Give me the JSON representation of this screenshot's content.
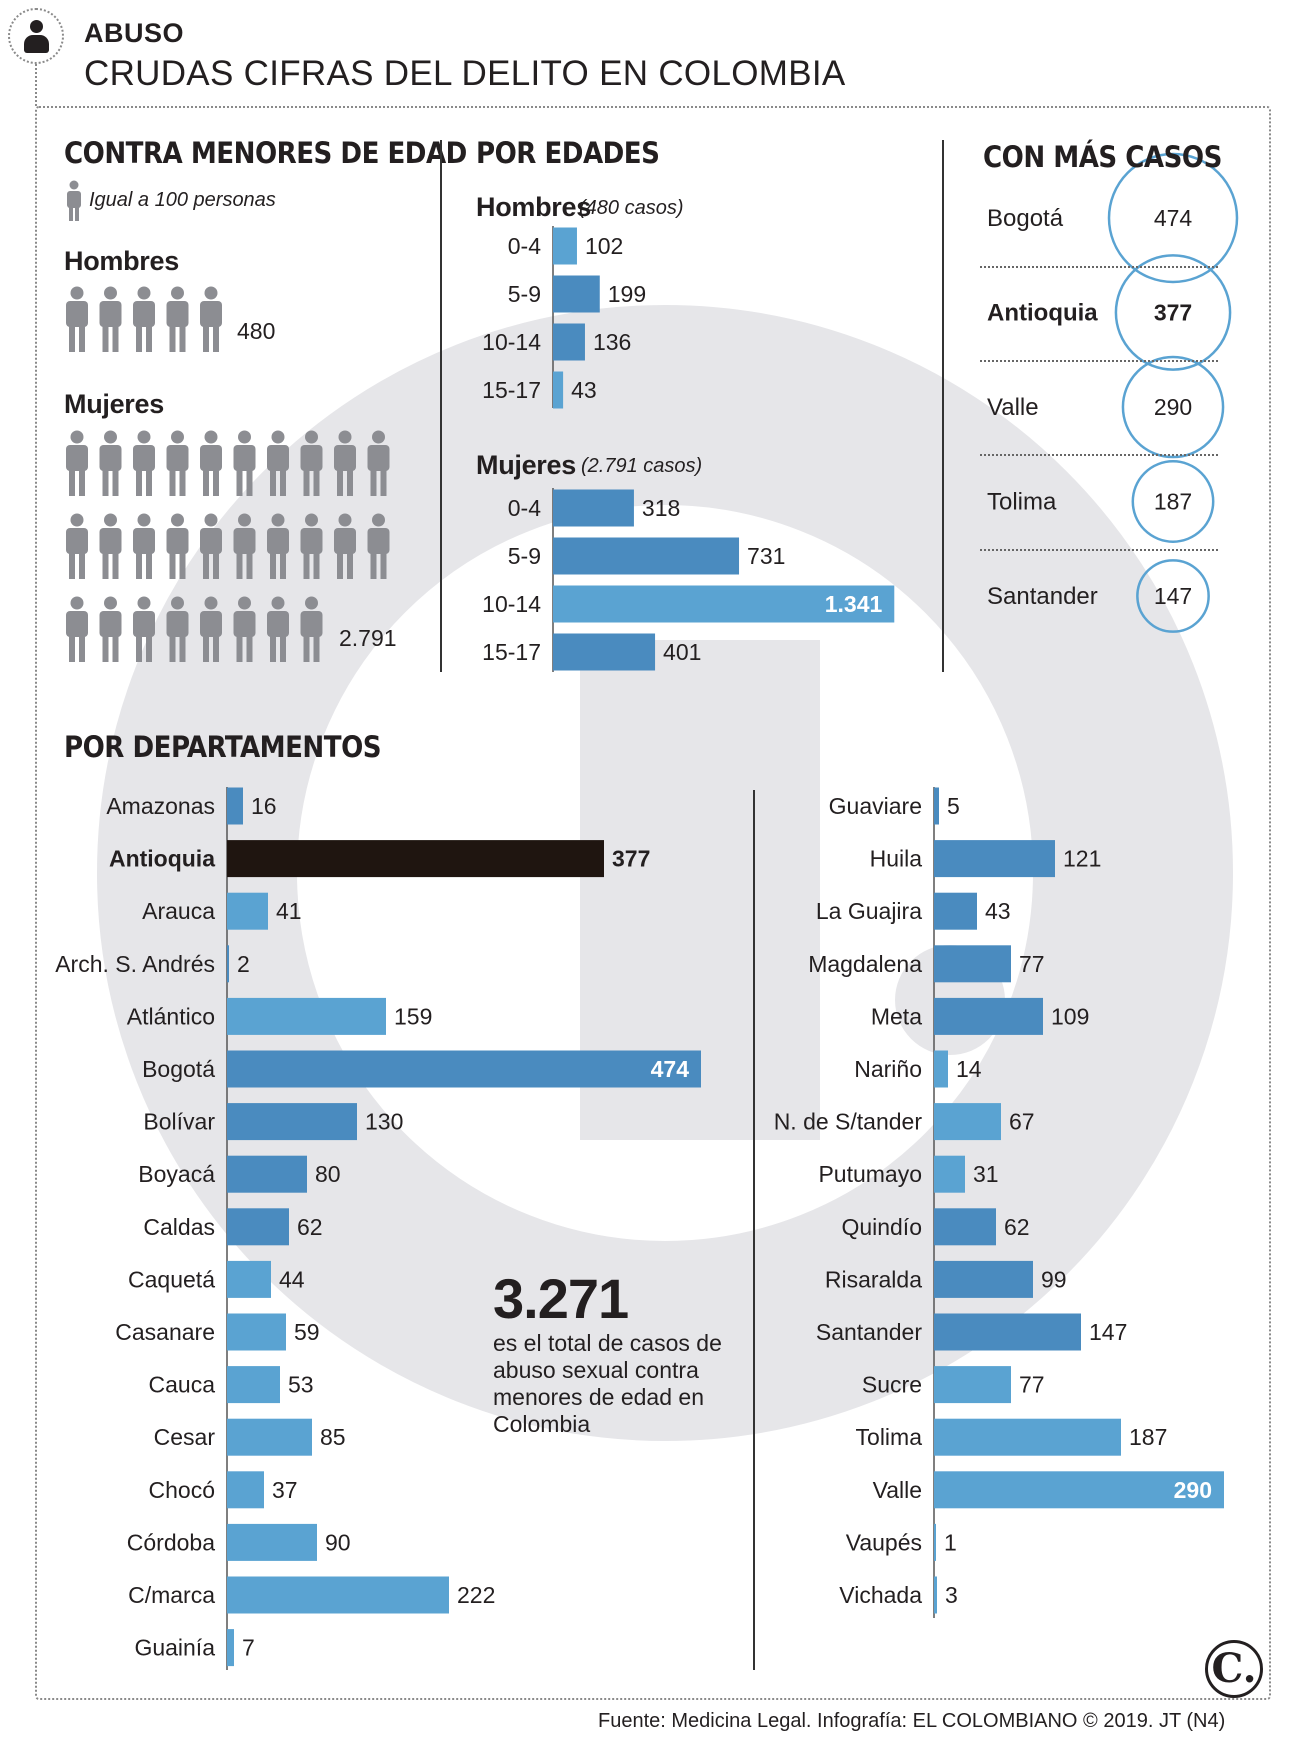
{
  "header": {
    "kicker": "ABUSO",
    "title": "CRUDAS CIFRAS DEL DELITO EN COLOMBIA"
  },
  "menores": {
    "title": "CONTRA MENORES DE EDAD",
    "legend": "Igual a 100 personas",
    "hombres_label": "Hombres",
    "hombres_value": "480",
    "hombres_count": 480,
    "mujeres_label": "Mujeres",
    "mujeres_value": "2.791",
    "mujeres_count": 2791,
    "unit": 100
  },
  "edades": {
    "title": "POR EDADES",
    "hombres_label": "Hombres",
    "hombres_note": "(480 casos)",
    "mujeres_label": "Mujeres",
    "mujeres_note": "(2.791 casos)"
  },
  "mas_casos": {
    "title": "CON MÁS CASOS",
    "items": [
      {
        "name": "Bogotá",
        "value": "474",
        "v": 474,
        "bold": false
      },
      {
        "name": "Antioquia",
        "value": "377",
        "v": 377,
        "bold": true
      },
      {
        "name": "Valle",
        "value": "290",
        "v": 290,
        "bold": false
      },
      {
        "name": "Tolima",
        "value": "187",
        "v": 187,
        "bold": false
      },
      {
        "name": "Santander",
        "value": "147",
        "v": 147,
        "bold": false
      }
    ]
  },
  "departamentos": {
    "title": "POR DEPARTAMENTOS"
  },
  "total": {
    "value": "3.271",
    "text": "es el total de casos de abuso sexual contra menores de edad en Colombia"
  },
  "logo": "C.",
  "source": "Fuente: Medicina Legal. Infografía: EL COLOMBIANO © 2019. JT (N4)",
  "colors": {
    "bar_light": "#5aa3d2",
    "bar_dark": "#4a8bbf",
    "bar_black": "#1f1510",
    "person": "#8c8d92",
    "watermark": "#e6e6e9",
    "circle": "#5aa3d2"
  },
  "chart_data": [
    {
      "type": "bar",
      "orientation": "horizontal",
      "categories": [
        "0-4",
        "5-9",
        "10-14",
        "15-17"
      ],
      "values": [
        102,
        199,
        136,
        43
      ],
      "labels": [
        "102",
        "199",
        "136",
        "43"
      ],
      "highlight": [
        false,
        true,
        true,
        false
      ]
    },
    {
      "type": "bar",
      "orientation": "horizontal",
      "categories": [
        "0-4",
        "5-9",
        "10-14",
        "15-17"
      ],
      "values": [
        318,
        731,
        1341,
        401
      ],
      "labels": [
        "318",
        "731",
        "1.341",
        "401"
      ],
      "highlight": [
        true,
        true,
        false,
        true
      ]
    },
    {
      "type": "bar",
      "orientation": "horizontal",
      "categories": [
        "Amazonas",
        "Antioquia",
        "Arauca",
        "Arch. S. Andrés",
        "Atlántico",
        "Bogotá",
        "Bolívar",
        "Boyacá",
        "Caldas",
        "Caquetá",
        "Casanare",
        "Cauca",
        "Cesar",
        "Chocó",
        "Córdoba",
        "C/marca",
        "Guainía"
      ],
      "values": [
        16,
        377,
        41,
        2,
        159,
        474,
        130,
        80,
        62,
        44,
        59,
        53,
        85,
        37,
        90,
        222,
        7
      ],
      "labels": [
        "16",
        "377",
        "41",
        "2",
        "159",
        "474",
        "130",
        "80",
        "62",
        "44",
        "59",
        "53",
        "85",
        "37",
        "90",
        "222",
        "7"
      ],
      "highlight": [
        true,
        false,
        false,
        true,
        false,
        true,
        true,
        true,
        true,
        false,
        false,
        false,
        false,
        false,
        false,
        false,
        false
      ]
    },
    {
      "type": "bar",
      "orientation": "horizontal",
      "categories": [
        "Guaviare",
        "Huila",
        "La Guajira",
        "Magdalena",
        "Meta",
        "Nariño",
        "N. de S/tander",
        "Putumayo",
        "Quindío",
        "Risaralda",
        "Santander",
        "Sucre",
        "Tolima",
        "Valle",
        "Vaupés",
        "Vichada"
      ],
      "values": [
        5,
        121,
        43,
        77,
        109,
        14,
        67,
        31,
        62,
        99,
        147,
        77,
        187,
        290,
        1,
        3
      ],
      "labels": [
        "5",
        "121",
        "43",
        "77",
        "109",
        "14",
        "67",
        "31",
        "62",
        "99",
        "147",
        "77",
        "187",
        "290",
        "1",
        "3"
      ],
      "highlight": [
        true,
        true,
        true,
        true,
        true,
        false,
        false,
        false,
        true,
        true,
        true,
        false,
        false,
        false,
        false,
        false
      ]
    }
  ]
}
